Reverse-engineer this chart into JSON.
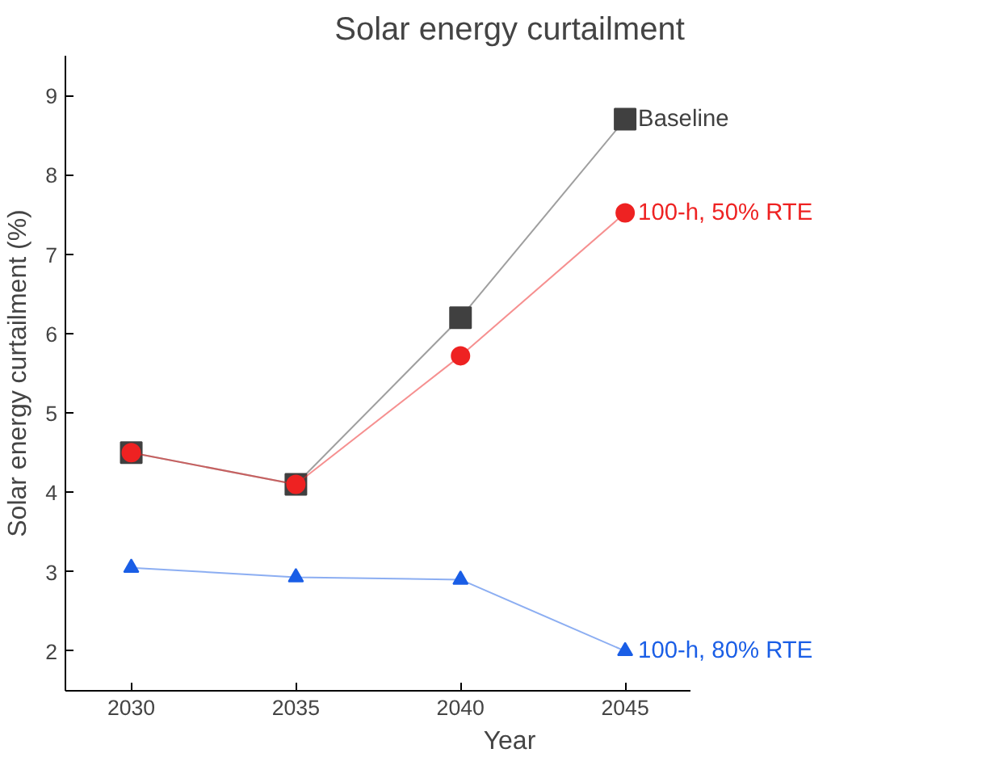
{
  "chart_data": {
    "type": "line",
    "title": "Solar energy curtailment",
    "xlabel": "Year",
    "ylabel": "Solar energy curtailment (%)",
    "x": [
      2030,
      2035,
      2040,
      2045
    ],
    "xlim": [
      2028,
      2047
    ],
    "xticks": [
      2030,
      2035,
      2040,
      2045
    ],
    "ylim": [
      1.5,
      9.5
    ],
    "yticks": [
      2,
      3,
      4,
      5,
      6,
      7,
      8,
      9
    ],
    "grid": false,
    "legend": false,
    "series": [
      {
        "name": "Baseline",
        "color": "#404040",
        "marker": "square",
        "values": [
          4.5,
          4.1,
          6.2,
          8.7
        ]
      },
      {
        "name": "100-h, 50% RTE",
        "color": "#ee2222",
        "marker": "circle",
        "values": [
          4.5,
          4.1,
          5.72,
          7.52
        ]
      },
      {
        "name": "100-h, 80% RTE",
        "color": "#1a5ee6",
        "marker": "triangle",
        "values": [
          3.05,
          2.93,
          2.9,
          2.0
        ]
      }
    ]
  }
}
